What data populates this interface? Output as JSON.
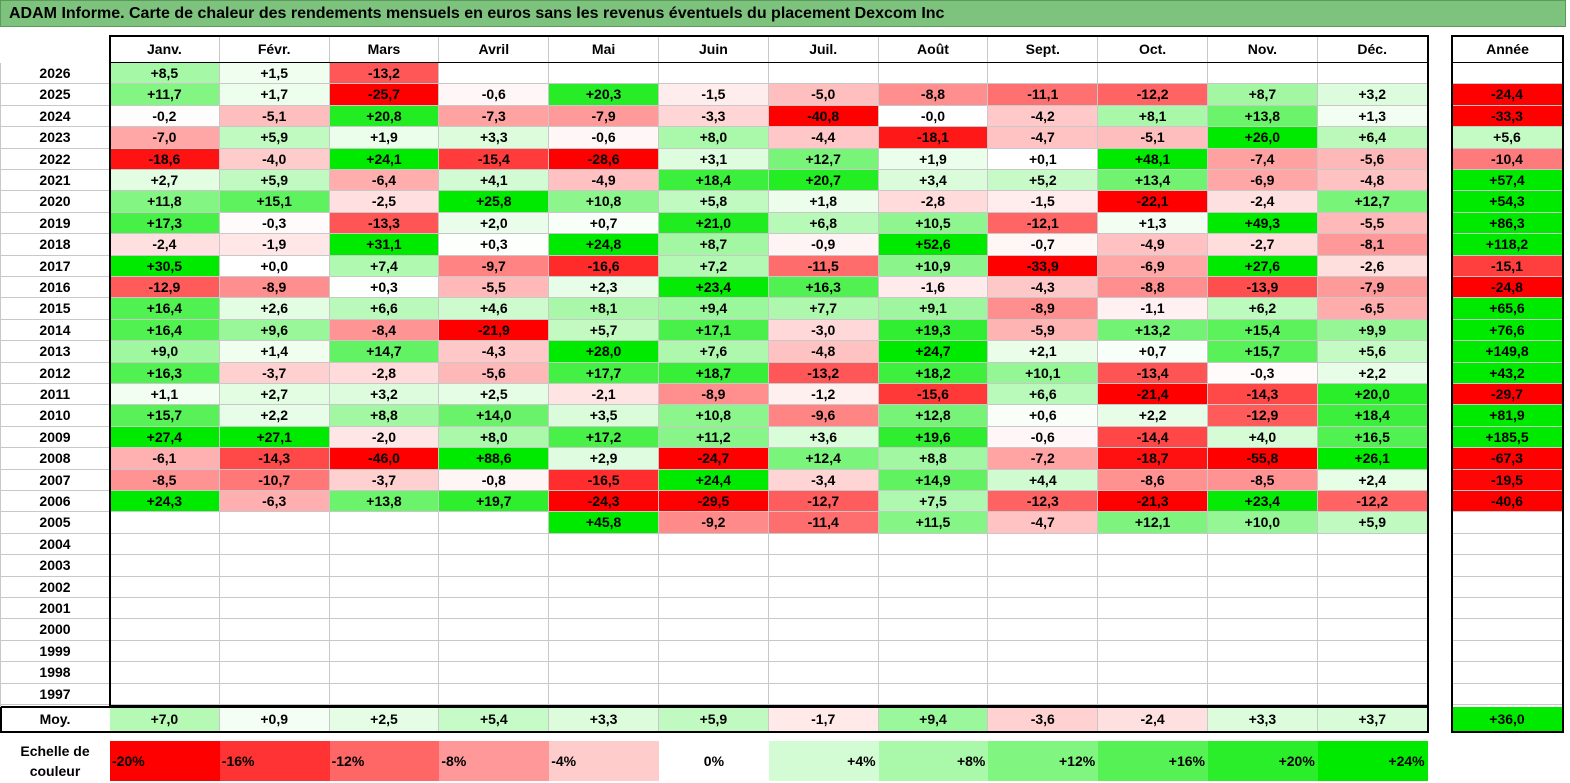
{
  "chart_data": {
    "type": "heatmap",
    "title": "ADAM Informe. Carte de chaleur des rendements mensuels en euros sans les revenus éventuels du placement Dexcom Inc",
    "months": [
      "Janv.",
      "Févr.",
      "Mars",
      "Avril",
      "Mai",
      "Juin",
      "Juil.",
      "Août",
      "Sept.",
      "Oct.",
      "Nov.",
      "Déc."
    ],
    "annual_header": "Année",
    "rows": [
      {
        "year": "2026",
        "values": [
          "+8,5",
          "+1,5",
          "-13,2",
          "",
          "",
          "",
          "",
          "",
          "",
          "",
          "",
          ""
        ],
        "annual": ""
      },
      {
        "year": "2025",
        "values": [
          "+11,7",
          "+1,7",
          "-25,7",
          "-0,6",
          "+20,3",
          "-1,5",
          "-5,0",
          "-8,8",
          "-11,1",
          "-12,2",
          "+8,7",
          "+3,2"
        ],
        "annual": "-24,4"
      },
      {
        "year": "2024",
        "values": [
          "-0,2",
          "-5,1",
          "+20,8",
          "-7,3",
          "-7,9",
          "-3,3",
          "-40,8",
          "-0,0",
          "-4,2",
          "+8,1",
          "+13,8",
          "+1,3"
        ],
        "annual": "-33,3"
      },
      {
        "year": "2023",
        "values": [
          "-7,0",
          "+5,9",
          "+1,9",
          "+3,3",
          "-0,6",
          "+8,0",
          "-4,4",
          "-18,1",
          "-4,7",
          "-5,1",
          "+26,0",
          "+6,4"
        ],
        "annual": "+5,6"
      },
      {
        "year": "2022",
        "values": [
          "-18,6",
          "-4,0",
          "+24,1",
          "-15,4",
          "-28,6",
          "+3,1",
          "+12,7",
          "+1,9",
          "+0,1",
          "+48,1",
          "-7,4",
          "-5,6"
        ],
        "annual": "-10,4"
      },
      {
        "year": "2021",
        "values": [
          "+2,7",
          "+5,9",
          "-6,4",
          "+4,1",
          "-4,9",
          "+18,4",
          "+20,7",
          "+3,4",
          "+5,2",
          "+13,4",
          "-6,9",
          "-4,8"
        ],
        "annual": "+57,4"
      },
      {
        "year": "2020",
        "values": [
          "+11,8",
          "+15,1",
          "-2,5",
          "+25,8",
          "+10,8",
          "+5,8",
          "+1,8",
          "-2,8",
          "-1,5",
          "-22,1",
          "-2,4",
          "+12,7"
        ],
        "annual": "+54,3"
      },
      {
        "year": "2019",
        "values": [
          "+17,3",
          "-0,3",
          "-13,3",
          "+2,0",
          "+0,7",
          "+21,0",
          "+6,8",
          "+10,5",
          "-12,1",
          "+1,3",
          "+49,3",
          "-5,5"
        ],
        "annual": "+86,3"
      },
      {
        "year": "2018",
        "values": [
          "-2,4",
          "-1,9",
          "+31,1",
          "+0,3",
          "+24,8",
          "+8,7",
          "-0,9",
          "+52,6",
          "-0,7",
          "-4,9",
          "-2,7",
          "-8,1"
        ],
        "annual": "+118,2"
      },
      {
        "year": "2017",
        "values": [
          "+30,5",
          "+0,0",
          "+7,4",
          "-9,7",
          "-16,6",
          "+7,2",
          "-11,5",
          "+10,9",
          "-33,9",
          "-6,9",
          "+27,6",
          "-2,6"
        ],
        "annual": "-15,1"
      },
      {
        "year": "2016",
        "values": [
          "-12,9",
          "-8,9",
          "+0,3",
          "-5,5",
          "+2,3",
          "+23,4",
          "+16,3",
          "-1,6",
          "-4,3",
          "-8,8",
          "-13,9",
          "-7,9"
        ],
        "annual": "-24,8"
      },
      {
        "year": "2015",
        "values": [
          "+16,4",
          "+2,6",
          "+6,6",
          "+4,6",
          "+8,1",
          "+9,4",
          "+7,7",
          "+9,1",
          "-8,9",
          "-1,1",
          "+6,2",
          "-6,5"
        ],
        "annual": "+65,6"
      },
      {
        "year": "2014",
        "values": [
          "+16,4",
          "+9,6",
          "-8,4",
          "-21,9",
          "+5,7",
          "+17,1",
          "-3,0",
          "+19,3",
          "-5,9",
          "+13,2",
          "+15,4",
          "+9,9"
        ],
        "annual": "+76,6"
      },
      {
        "year": "2013",
        "values": [
          "+9,0",
          "+1,4",
          "+14,7",
          "-4,3",
          "+28,0",
          "+7,6",
          "-4,8",
          "+24,7",
          "+2,1",
          "+0,7",
          "+15,7",
          "+5,6"
        ],
        "annual": "+149,8"
      },
      {
        "year": "2012",
        "values": [
          "+16,3",
          "-3,7",
          "-2,8",
          "-5,6",
          "+17,7",
          "+18,7",
          "-13,2",
          "+18,2",
          "+10,1",
          "-13,4",
          "-0,3",
          "+2,2"
        ],
        "annual": "+43,2"
      },
      {
        "year": "2011",
        "values": [
          "+1,1",
          "+2,7",
          "+3,2",
          "+2,5",
          "-2,1",
          "-8,9",
          "-1,2",
          "-15,6",
          "+6,6",
          "-21,4",
          "-14,3",
          "+20,0"
        ],
        "annual": "-29,7"
      },
      {
        "year": "2010",
        "values": [
          "+15,7",
          "+2,2",
          "+8,8",
          "+14,0",
          "+3,5",
          "+10,8",
          "-9,6",
          "+12,8",
          "+0,6",
          "+2,2",
          "-12,9",
          "+18,4"
        ],
        "annual": "+81,9"
      },
      {
        "year": "2009",
        "values": [
          "+27,4",
          "+27,1",
          "-2,0",
          "+8,0",
          "+17,2",
          "+11,2",
          "+3,6",
          "+19,6",
          "-0,6",
          "-14,4",
          "+4,0",
          "+16,5"
        ],
        "annual": "+185,5"
      },
      {
        "year": "2008",
        "values": [
          "-6,1",
          "-14,3",
          "-46,0",
          "+88,6",
          "+2,9",
          "-24,7",
          "+12,4",
          "+8,8",
          "-7,2",
          "-18,7",
          "-55,8",
          "+26,1"
        ],
        "annual": "-67,3"
      },
      {
        "year": "2007",
        "values": [
          "-8,5",
          "-10,7",
          "-3,7",
          "-0,8",
          "-16,5",
          "+24,4",
          "-3,4",
          "+14,9",
          "+4,4",
          "-8,6",
          "-8,5",
          "+2,4"
        ],
        "annual": "-19,5"
      },
      {
        "year": "2006",
        "values": [
          "+24,3",
          "-6,3",
          "+13,8",
          "+19,7",
          "-24,3",
          "-29,5",
          "-12,7",
          "+7,5",
          "-12,3",
          "-21,3",
          "+23,4",
          "-12,2"
        ],
        "annual": "-40,6"
      },
      {
        "year": "2005",
        "values": [
          "",
          "",
          "",
          "",
          "+45,8",
          "-9,2",
          "-11,4",
          "+11,5",
          "-4,7",
          "+12,1",
          "+10,0",
          "+5,9"
        ],
        "annual": ""
      },
      {
        "year": "2004",
        "values": [
          "",
          "",
          "",
          "",
          "",
          "",
          "",
          "",
          "",
          "",
          "",
          ""
        ],
        "annual": ""
      },
      {
        "year": "2003",
        "values": [
          "",
          "",
          "",
          "",
          "",
          "",
          "",
          "",
          "",
          "",
          "",
          ""
        ],
        "annual": ""
      },
      {
        "year": "2002",
        "values": [
          "",
          "",
          "",
          "",
          "",
          "",
          "",
          "",
          "",
          "",
          "",
          ""
        ],
        "annual": ""
      },
      {
        "year": "2001",
        "values": [
          "",
          "",
          "",
          "",
          "",
          "",
          "",
          "",
          "",
          "",
          "",
          ""
        ],
        "annual": ""
      },
      {
        "year": "2000",
        "values": [
          "",
          "",
          "",
          "",
          "",
          "",
          "",
          "",
          "",
          "",
          "",
          ""
        ],
        "annual": ""
      },
      {
        "year": "1999",
        "values": [
          "",
          "",
          "",
          "",
          "",
          "",
          "",
          "",
          "",
          "",
          "",
          ""
        ],
        "annual": ""
      },
      {
        "year": "1998",
        "values": [
          "",
          "",
          "",
          "",
          "",
          "",
          "",
          "",
          "",
          "",
          "",
          ""
        ],
        "annual": ""
      },
      {
        "year": "1997",
        "values": [
          "",
          "",
          "",
          "",
          "",
          "",
          "",
          "",
          "",
          "",
          "",
          ""
        ],
        "annual": ""
      }
    ],
    "average_label": "Moy.",
    "averages": [
      "+7,0",
      "+0,9",
      "+2,5",
      "+5,4",
      "+3,3",
      "+5,9",
      "-1,7",
      "+9,4",
      "-3,6",
      "-2,4",
      "+3,3",
      "+3,7"
    ],
    "average_annual": "+36,0",
    "color_scale_label": "Echelle de couleur",
    "color_scale": [
      {
        "label": "-20%",
        "value": -20,
        "color": "#ff0000"
      },
      {
        "label": "-16%",
        "value": -16,
        "color": "#ff3333"
      },
      {
        "label": "-12%",
        "value": -12,
        "color": "#ff6666"
      },
      {
        "label": "-8%",
        "value": -8,
        "color": "#ff9999"
      },
      {
        "label": "-4%",
        "value": -4,
        "color": "#ffcccc"
      },
      {
        "label": "0%",
        "value": 0,
        "color": "#ffffff"
      },
      {
        "label": "+4%",
        "value": 4,
        "color": "#d4fcd4"
      },
      {
        "label": "+8%",
        "value": 8,
        "color": "#aaf8aa"
      },
      {
        "label": "+12%",
        "value": 12,
        "color": "#80f580"
      },
      {
        "label": "+16%",
        "value": 16,
        "color": "#55f155"
      },
      {
        "label": "+20%",
        "value": 20,
        "color": "#2bee2b"
      },
      {
        "label": "+24%",
        "value": 24,
        "color": "#00ea00"
      }
    ]
  }
}
